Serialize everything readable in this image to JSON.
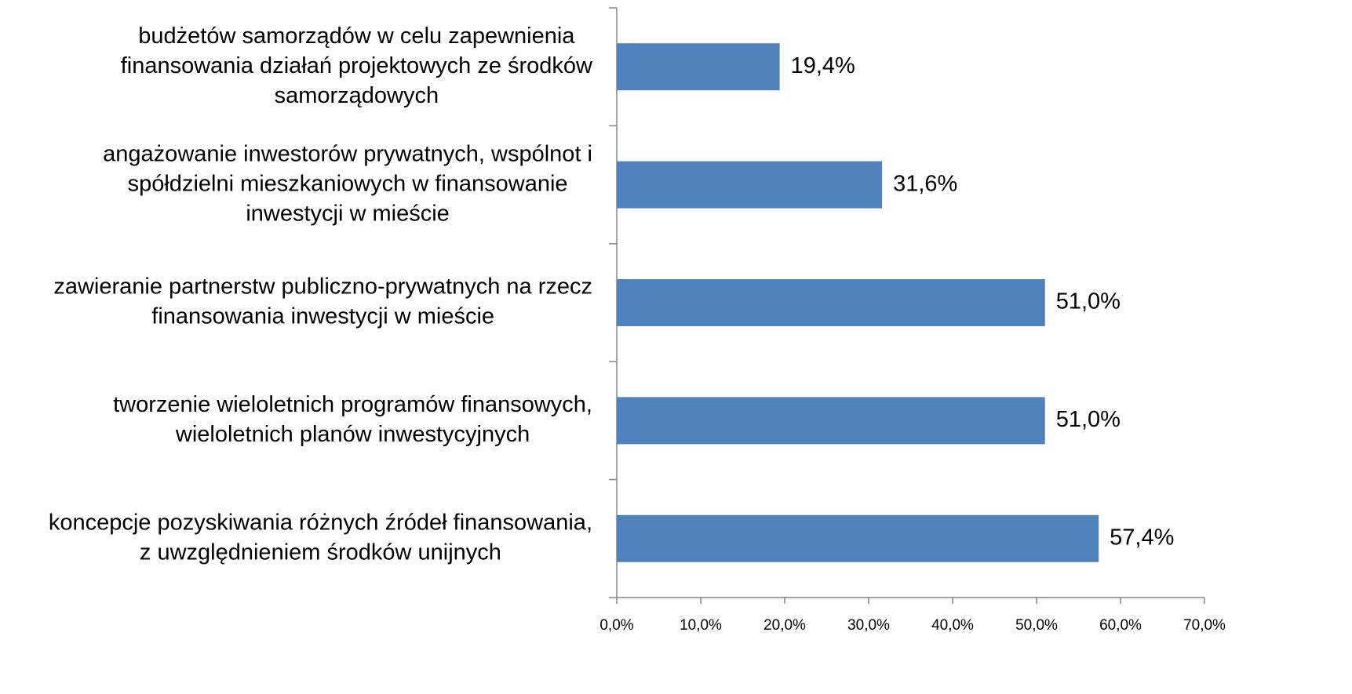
{
  "chart_data": {
    "type": "hbar",
    "color": "#4f81bd",
    "categories": [
      [
        "budżetów samorządów w celu zapewnienia",
        "finansowania działań projektowych ze środków",
        "samorządowych"
      ],
      [
        "angażowanie inwestorów prywatnych, wspólnot i",
        "spółdzielni mieszkaniowych w finansowanie",
        "inwestycji w mieście"
      ],
      [
        "zawieranie partnerstw publiczno-prywatnych na rzecz",
        "finansowania inwestycji w mieście"
      ],
      [
        "tworzenie wieloletnich programów finansowych,",
        "wieloletnich planów inwestycyjnych"
      ],
      [
        "koncepcje pozyskiwania różnych źródeł finansowania,",
        "z uwzględnieniem środków unijnych"
      ]
    ],
    "values": [
      19.4,
      31.6,
      51.0,
      51.0,
      57.4
    ],
    "value_labels": [
      "19,4%",
      "31,6%",
      "51,0%",
      "51,0%",
      "57,4%"
    ],
    "xlim": [
      0,
      70
    ],
    "xticks": [
      {
        "value": 0,
        "label": "0,0%"
      },
      {
        "value": 10,
        "label": "10,0%"
      },
      {
        "value": 20,
        "label": "20,0%"
      },
      {
        "value": 30,
        "label": "30,0%"
      },
      {
        "value": 40,
        "label": "40,0%"
      },
      {
        "value": 50,
        "label": "50,0%"
      },
      {
        "value": 60,
        "label": "60,0%"
      },
      {
        "value": 70,
        "label": "70,0%"
      }
    ]
  }
}
